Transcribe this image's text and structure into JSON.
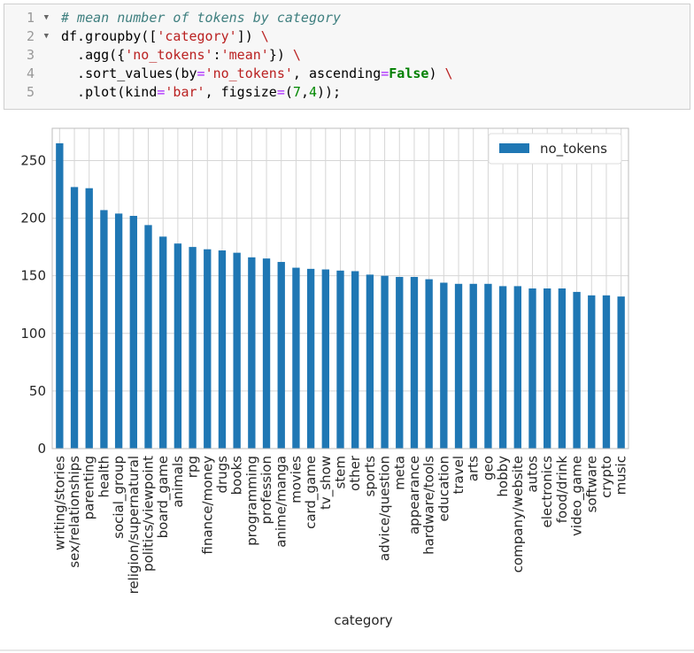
{
  "code": {
    "line_numbers": [
      "1",
      "2",
      "3",
      "4",
      "5"
    ],
    "lines": [
      [
        {
          "text": "# mean number of tokens by category",
          "color": "#408080",
          "italic": true
        }
      ],
      [
        {
          "text": "df.groupby([",
          "color": "#000000"
        },
        {
          "text": "'category'",
          "color": "#ba2121"
        },
        {
          "text": "]) ",
          "color": "#000000"
        },
        {
          "text": "\\",
          "color": "#ba2121"
        }
      ],
      [
        {
          "text": "  .agg({",
          "color": "#000000"
        },
        {
          "text": "'no_tokens'",
          "color": "#ba2121"
        },
        {
          "text": ":",
          "color": "#000000"
        },
        {
          "text": "'mean'",
          "color": "#ba2121"
        },
        {
          "text": "}) ",
          "color": "#000000"
        },
        {
          "text": "\\",
          "color": "#ba2121"
        }
      ],
      [
        {
          "text": "  .sort_values(by",
          "color": "#000000"
        },
        {
          "text": "=",
          "color": "#aa22ff"
        },
        {
          "text": "'no_tokens'",
          "color": "#ba2121"
        },
        {
          "text": ", ascending",
          "color": "#000000"
        },
        {
          "text": "=",
          "color": "#aa22ff"
        },
        {
          "text": "False",
          "color": "#008000",
          "bold": true
        },
        {
          "text": ") ",
          "color": "#000000"
        },
        {
          "text": "\\",
          "color": "#ba2121"
        }
      ],
      [
        {
          "text": "  .plot(kind",
          "color": "#000000"
        },
        {
          "text": "=",
          "color": "#aa22ff"
        },
        {
          "text": "'bar'",
          "color": "#ba2121"
        },
        {
          "text": ", figsize",
          "color": "#000000"
        },
        {
          "text": "=",
          "color": "#aa22ff"
        },
        {
          "text": "(",
          "color": "#000000"
        },
        {
          "text": "7",
          "color": "#008800"
        },
        {
          "text": ",",
          "color": "#000000"
        },
        {
          "text": "4",
          "color": "#008800"
        },
        {
          "text": "));",
          "color": "#000000"
        }
      ]
    ]
  },
  "chart_data": {
    "type": "bar",
    "x_label": "category",
    "legend": "upper right",
    "grid": true,
    "series": [
      {
        "name": "no_tokens",
        "color": "#1f77b4",
        "values": [
          265,
          227,
          226,
          207,
          204,
          202,
          194,
          184,
          178,
          175,
          173,
          172,
          170,
          166,
          165,
          162,
          157,
          156,
          155.5,
          154.5,
          154,
          151,
          150,
          149,
          149,
          147,
          144,
          143,
          143,
          143,
          141,
          141,
          139,
          139,
          139,
          136,
          133,
          133,
          132
        ]
      }
    ],
    "categories": [
      "writing/stories",
      "sex/relationships",
      "parenting",
      "health",
      "social_group",
      "religion/supernatural",
      "politics/viewpoint",
      "board_game",
      "animals",
      "rpg",
      "finance/money",
      "drugs",
      "books",
      "programming",
      "profession",
      "anime/manga",
      "movies",
      "card_game",
      "tv_show",
      "stem",
      "other",
      "sports",
      "advice/question",
      "meta",
      "appearance",
      "hardware/tools",
      "education",
      "travel",
      "arts",
      "geo",
      "hobby",
      "company/website",
      "autos",
      "electronics",
      "food/drink",
      "video_game",
      "software",
      "crypto",
      "music"
    ],
    "ylim": [
      0,
      278
    ],
    "yticks": [
      0,
      50,
      100,
      150,
      200,
      250
    ]
  }
}
